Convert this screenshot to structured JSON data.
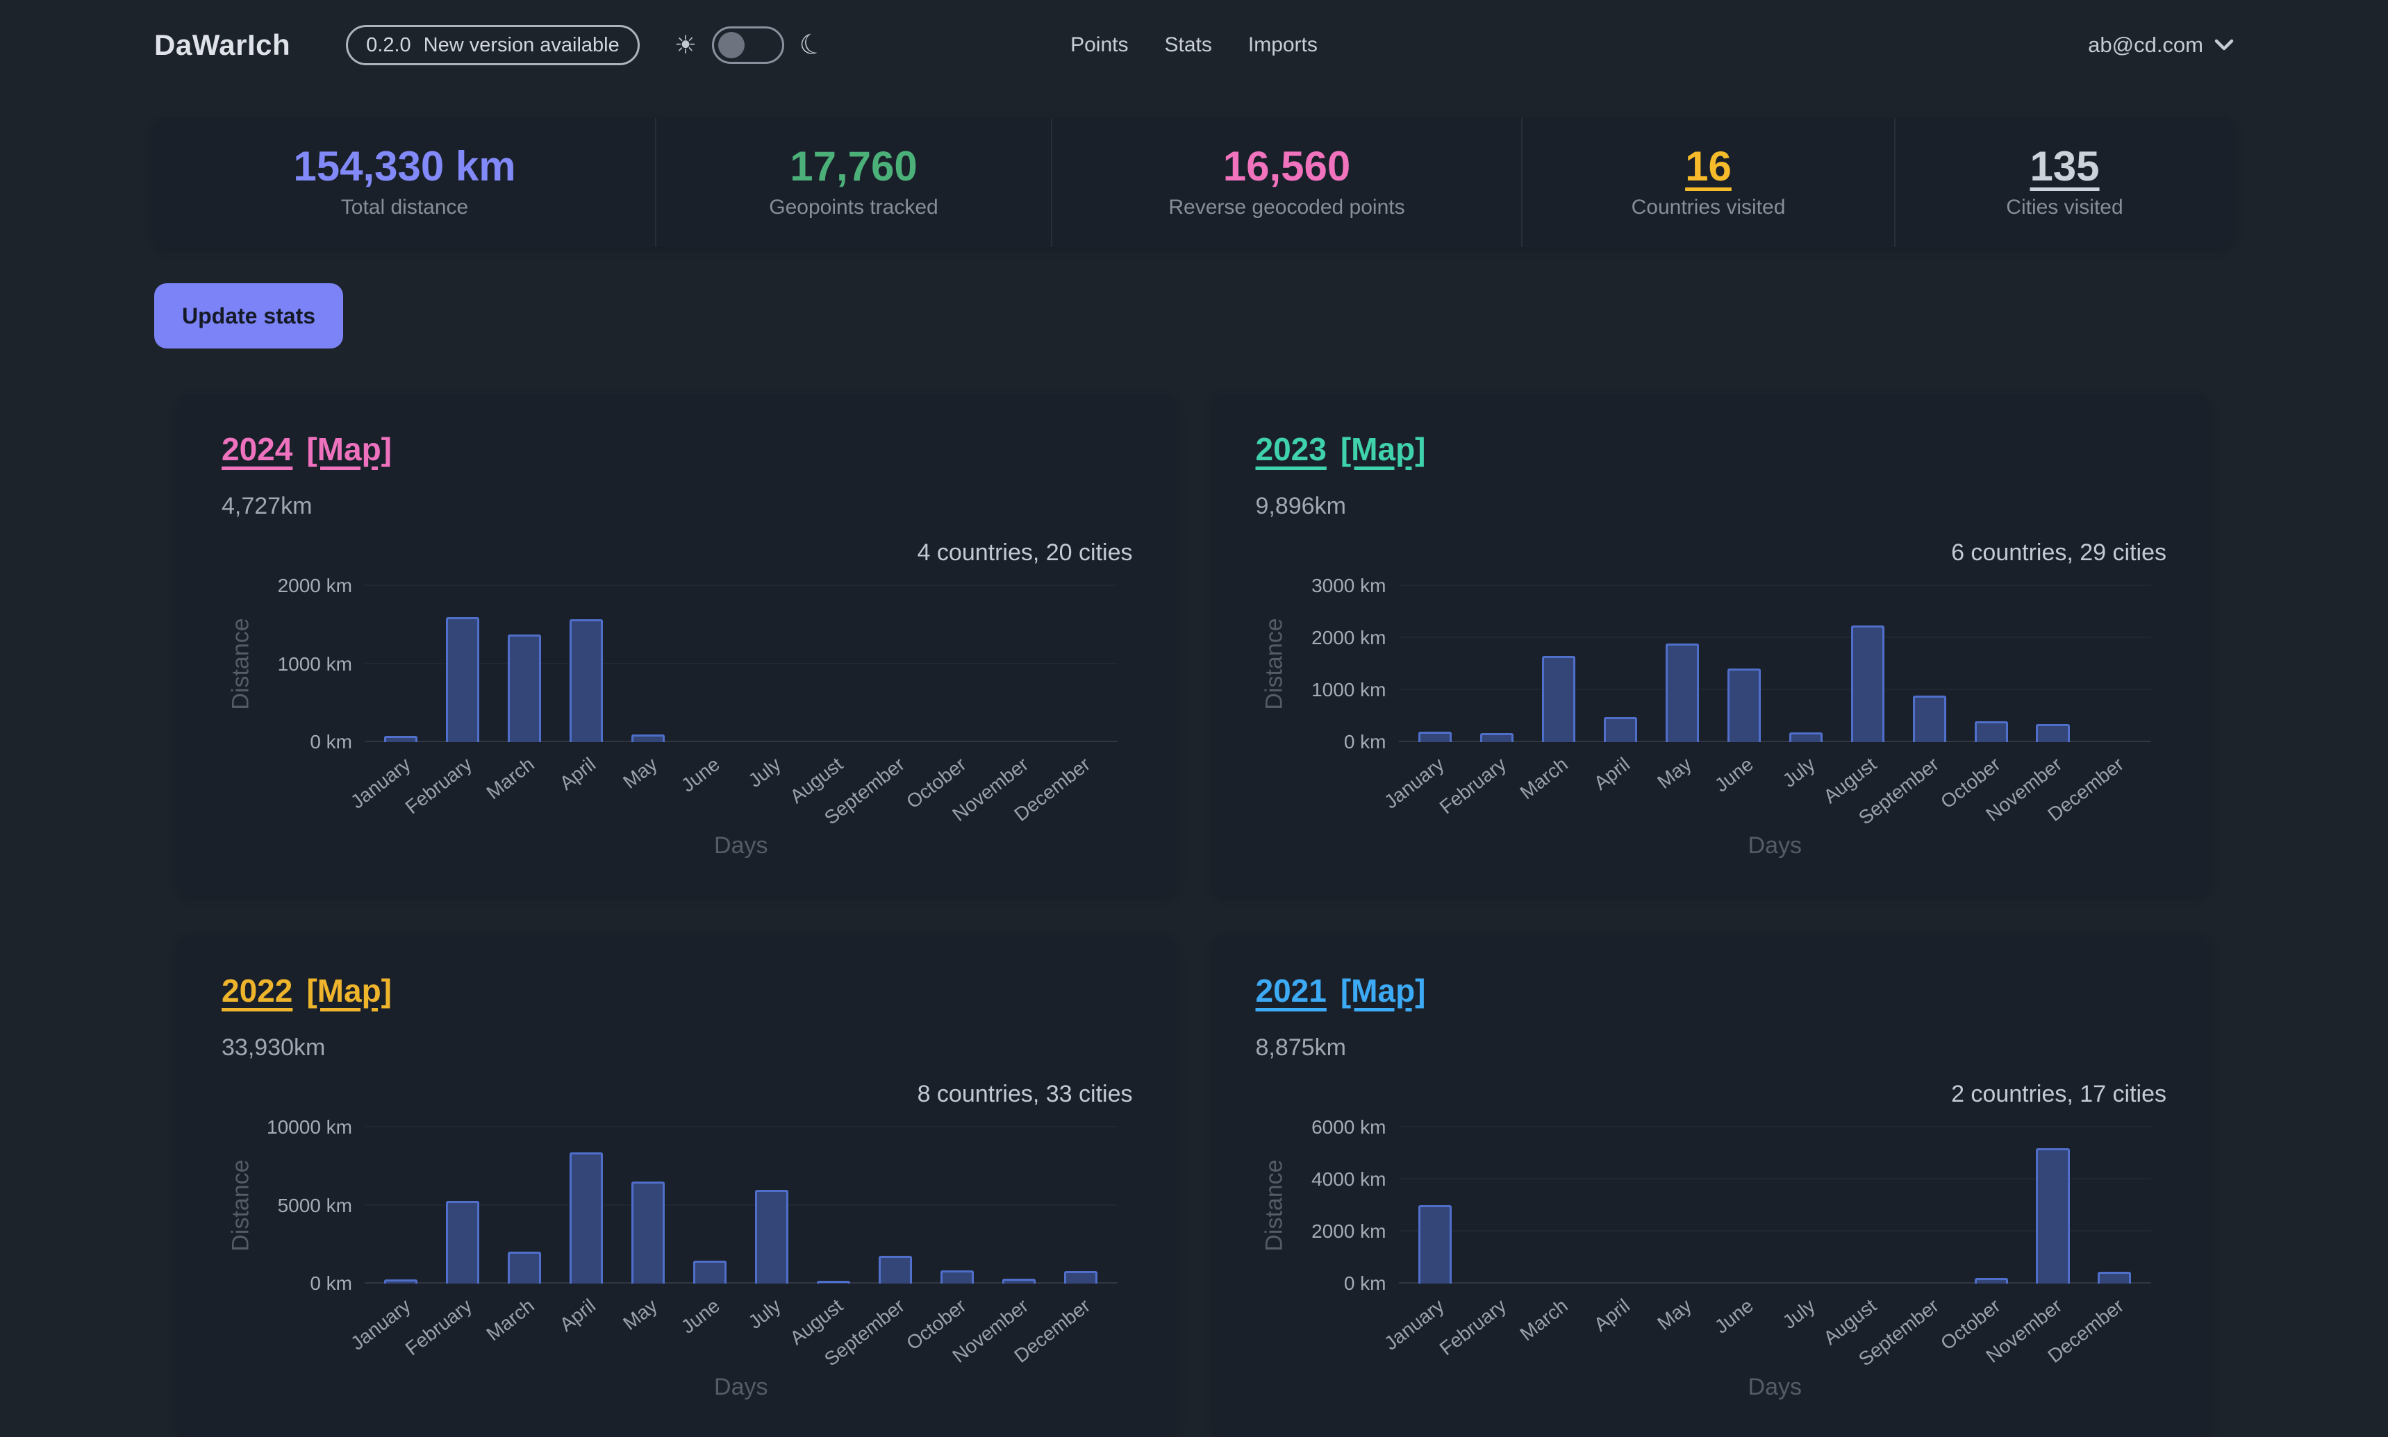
{
  "header": {
    "logo": "DaWarIch",
    "version_badge": {
      "version": "0.2.0",
      "label": "New version available"
    },
    "theme": {
      "sun_glyph": "☀",
      "moon_glyph": "☾"
    },
    "nav": [
      {
        "label": "Points"
      },
      {
        "label": "Stats"
      },
      {
        "label": "Imports"
      }
    ],
    "user": {
      "email": "ab@cd.com"
    }
  },
  "stats": [
    {
      "value": "154,330 km",
      "label": "Total distance",
      "color": "#8289f8"
    },
    {
      "value": "17,760",
      "label": "Geopoints tracked",
      "color": "#4bb179"
    },
    {
      "value": "16,560",
      "label": "Reverse geocoded points",
      "color": "#f173be"
    },
    {
      "value": "16",
      "label": "Countries visited",
      "color": "#f5bb2b"
    },
    {
      "value": "135",
      "label": "Cities visited",
      "color": "#ccd2da"
    }
  ],
  "actions": {
    "update_stats": "Update stats"
  },
  "year_cards": [
    {
      "year": "2024",
      "map_label": "[Map]",
      "accent": "#ef72be",
      "distance": "4,727km",
      "summary": "4 countries, 20 cities"
    },
    {
      "year": "2023",
      "map_label": "[Map]",
      "accent": "#3fd2ab",
      "distance": "9,896km",
      "summary": "6 countries, 29 cities"
    },
    {
      "year": "2022",
      "map_label": "[Map]",
      "accent": "#eeb42c",
      "distance": "33,930km",
      "summary": "8 countries, 33 cities"
    },
    {
      "year": "2021",
      "map_label": "[Map]",
      "accent": "#3daaf5",
      "distance": "8,875km",
      "summary": "2 countries, 17 cities"
    }
  ],
  "chart_data": [
    {
      "type": "bar",
      "title": "2024 monthly distance",
      "categories": [
        "January",
        "February",
        "March",
        "April",
        "May",
        "June",
        "July",
        "August",
        "September",
        "October",
        "November",
        "December"
      ],
      "values": [
        82,
        1600,
        1380,
        1570,
        95,
        0,
        0,
        0,
        0,
        0,
        0,
        0
      ],
      "xlabel": "Days",
      "ylabel": "Distance",
      "ylim": [
        0,
        2000
      ],
      "ytick_labels": [
        "0 km",
        "1000 km",
        "2000 km"
      ],
      "grid": true,
      "legend": "none",
      "bar_fill": "#344678",
      "bar_border": "#4f6fcb"
    },
    {
      "type": "bar",
      "title": "2023 monthly distance",
      "categories": [
        "January",
        "February",
        "March",
        "April",
        "May",
        "June",
        "July",
        "August",
        "September",
        "October",
        "November",
        "December"
      ],
      "values": [
        200,
        170,
        1660,
        480,
        1890,
        1420,
        190,
        2240,
        900,
        400,
        346,
        0
      ],
      "xlabel": "Days",
      "ylabel": "Distance",
      "ylim": [
        0,
        3000
      ],
      "ytick_labels": [
        "0 km",
        "1000 km",
        "2000 km",
        "3000 km"
      ],
      "grid": true,
      "legend": "none",
      "bar_fill": "#344678",
      "bar_border": "#4f6fcb"
    },
    {
      "type": "bar",
      "title": "2022 monthly distance",
      "categories": [
        "January",
        "February",
        "March",
        "April",
        "May",
        "June",
        "July",
        "August",
        "September",
        "October",
        "November",
        "December"
      ],
      "values": [
        250,
        5300,
        2050,
        8400,
        6550,
        1450,
        6000,
        200,
        1800,
        850,
        300,
        780
      ],
      "xlabel": "Days",
      "ylabel": "Distance",
      "ylim": [
        0,
        10000
      ],
      "ytick_labels": [
        "0 km",
        "5000 km",
        "10000 km"
      ],
      "grid": true,
      "legend": "none",
      "bar_fill": "#344678",
      "bar_border": "#4f6fcb"
    },
    {
      "type": "bar",
      "title": "2021 monthly distance",
      "categories": [
        "January",
        "February",
        "March",
        "April",
        "May",
        "June",
        "July",
        "August",
        "September",
        "October",
        "November",
        "December"
      ],
      "values": [
        3010,
        0,
        0,
        0,
        0,
        0,
        0,
        0,
        0,
        210,
        5200,
        455
      ],
      "xlabel": "Days",
      "ylabel": "Distance",
      "ylim": [
        0,
        6000
      ],
      "ytick_labels": [
        "0 km",
        "2000 km",
        "4000 km",
        "6000 km"
      ],
      "grid": true,
      "legend": "none",
      "bar_fill": "#344678",
      "bar_border": "#4f6fcb"
    }
  ]
}
